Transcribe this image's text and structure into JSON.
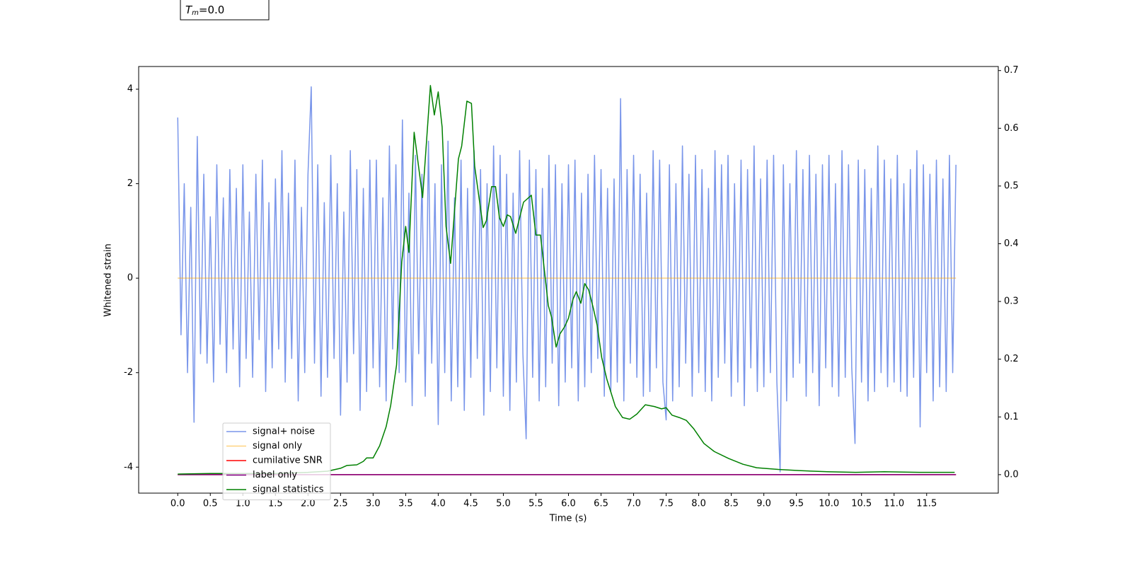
{
  "annotation": {
    "symbol": "T",
    "subscript": "m",
    "text": "=0.0"
  },
  "chart_data": {
    "type": "line",
    "xlabel": "Time (s)",
    "ylabel": "Whitened strain",
    "legend": true,
    "grid": false,
    "xlim": [
      -0.6,
      12.6
    ],
    "ylim": [
      -4.55,
      4.48
    ],
    "y2lim": [
      -0.032,
      0.707
    ],
    "xticks": [
      {
        "value": 0,
        "label": "0.0"
      },
      0.5,
      {
        "value": 1,
        "label": "1.0"
      },
      1.5,
      {
        "value": 2,
        "label": "2.0"
      },
      2.5,
      {
        "value": 3,
        "label": "3.0"
      },
      3.5,
      {
        "value": 4,
        "label": "4.0"
      },
      4.5,
      {
        "value": 5,
        "label": "5.0"
      },
      5.5,
      {
        "value": 6,
        "label": "6.0"
      },
      6.5,
      {
        "value": 7,
        "label": "7.0"
      },
      7.5,
      {
        "value": 8,
        "label": "8.0"
      },
      8.5,
      {
        "value": 9,
        "label": "9.0"
      },
      9.5,
      {
        "value": 10,
        "label": "10.0"
      },
      10.5,
      {
        "value": 11,
        "label": "11.0"
      },
      11.5
    ],
    "yticks": [
      -4,
      -2,
      0,
      2,
      4
    ],
    "y2ticks": [
      {
        "value": 0,
        "label": "0.0"
      },
      0.1,
      0.2,
      0.3,
      0.4,
      0.5,
      0.6,
      0.7
    ],
    "series": [
      {
        "name": "signal+ noise",
        "color": "#4169e1",
        "alpha": 0.7,
        "x": [
          0,
          0.05,
          0.1,
          0.15,
          0.2,
          0.25,
          0.3,
          0.35,
          0.4,
          0.45,
          0.5,
          0.55,
          0.6,
          0.65,
          0.7,
          0.75,
          0.8,
          0.85,
          0.9,
          0.95,
          1,
          1.05,
          1.1,
          1.15,
          1.2,
          1.25,
          1.3,
          1.35,
          1.4,
          1.45,
          1.5,
          1.55,
          1.6,
          1.65,
          1.7,
          1.75,
          1.8,
          1.85,
          1.9,
          1.95,
          2,
          2.05,
          2.1,
          2.15,
          2.2,
          2.25,
          2.3,
          2.35,
          2.4,
          2.45,
          2.5,
          2.55,
          2.6,
          2.65,
          2.7,
          2.75,
          2.8,
          2.85,
          2.9,
          2.95,
          3,
          3.05,
          3.1,
          3.15,
          3.2,
          3.25,
          3.3,
          3.35,
          3.4,
          3.45,
          3.5,
          3.55,
          3.6,
          3.65,
          3.7,
          3.75,
          3.8,
          3.85,
          3.9,
          3.95,
          4,
          4.05,
          4.1,
          4.15,
          4.2,
          4.25,
          4.3,
          4.35,
          4.4,
          4.45,
          4.5,
          4.55,
          4.6,
          4.65,
          4.7,
          4.75,
          4.8,
          4.85,
          4.9,
          4.95,
          5,
          5.05,
          5.1,
          5.15,
          5.2,
          5.25,
          5.3,
          5.35,
          5.4,
          5.45,
          5.5,
          5.55,
          5.6,
          5.65,
          5.7,
          5.75,
          5.8,
          5.85,
          5.9,
          5.95,
          6,
          6.05,
          6.1,
          6.15,
          6.2,
          6.25,
          6.3,
          6.35,
          6.4,
          6.45,
          6.5,
          6.55,
          6.6,
          6.65,
          6.7,
          6.75,
          6.8,
          6.85,
          6.9,
          6.95,
          7,
          7.05,
          7.1,
          7.15,
          7.2,
          7.25,
          7.3,
          7.35,
          7.4,
          7.45,
          7.5,
          7.55,
          7.6,
          7.65,
          7.7,
          7.75,
          7.8,
          7.85,
          7.9,
          7.95,
          8,
          8.05,
          8.1,
          8.15,
          8.2,
          8.25,
          8.3,
          8.35,
          8.4,
          8.45,
          8.5,
          8.55,
          8.6,
          8.65,
          8.7,
          8.75,
          8.8,
          8.85,
          8.9,
          8.95,
          9,
          9.05,
          9.1,
          9.15,
          9.2,
          9.25,
          9.3,
          9.35,
          9.4,
          9.45,
          9.5,
          9.55,
          9.6,
          9.65,
          9.7,
          9.75,
          9.8,
          9.85,
          9.9,
          9.95,
          10,
          10.05,
          10.1,
          10.15,
          10.2,
          10.25,
          10.3,
          10.35,
          10.4,
          10.45,
          10.5,
          10.55,
          10.6,
          10.65,
          10.7,
          10.75,
          10.8,
          10.85,
          10.9,
          10.95,
          11,
          11.05,
          11.1,
          11.15,
          11.2,
          11.25,
          11.3,
          11.35,
          11.4,
          11.45,
          11.5,
          11.55,
          11.6,
          11.65,
          11.7,
          11.75,
          11.8,
          11.85,
          11.9,
          11.95
        ],
        "values": [
          3.4,
          -1.2,
          2.0,
          -2.0,
          1.5,
          -3.05,
          3.0,
          -1.6,
          2.2,
          -1.8,
          1.3,
          -2.2,
          2.4,
          -1.4,
          1.7,
          -2.0,
          2.3,
          -1.5,
          1.9,
          -2.3,
          2.4,
          -1.7,
          1.4,
          -2.1,
          2.2,
          -1.3,
          2.5,
          -2.4,
          1.6,
          -1.9,
          2.1,
          -1.5,
          2.7,
          -2.2,
          1.8,
          -1.7,
          2.5,
          -2.6,
          1.5,
          -2.0,
          2.2,
          4.05,
          -1.8,
          2.4,
          -2.5,
          1.6,
          -2.1,
          2.6,
          -1.7,
          2.0,
          -2.9,
          1.4,
          -2.2,
          2.7,
          -1.6,
          2.3,
          -2.8,
          1.9,
          -2.4,
          2.5,
          -1.9,
          2.5,
          -2.3,
          1.7,
          -2.6,
          2.8,
          -1.5,
          2.4,
          -2.0,
          3.35,
          -2.2,
          1.8,
          -2.7,
          2.6,
          -1.6,
          2.2,
          -2.5,
          2.9,
          -1.8,
          2.0,
          -3.1,
          2.4,
          -2.0,
          2.9,
          -2.6,
          1.7,
          -2.3,
          2.5,
          -2.8,
          1.9,
          -2.1,
          2.7,
          -1.7,
          2.3,
          -2.9,
          2.0,
          -2.4,
          2.8,
          -1.9,
          2.6,
          -2.5,
          2.2,
          -2.8,
          1.8,
          -2.2,
          2.7,
          -1.6,
          -3.4,
          2.5,
          -2.1,
          2.3,
          -2.6,
          1.9,
          -2.3,
          2.6,
          -1.8,
          2.4,
          -2.7,
          2.0,
          -2.2,
          2.4,
          -1.9,
          2.5,
          -2.6,
          1.8,
          -2.3,
          2.2,
          -2.0,
          2.6,
          -1.7,
          2.3,
          -2.5,
          1.9,
          -2.4,
          2.1,
          -2.2,
          3.8,
          -2.6,
          2.3,
          -1.8,
          2.6,
          -2.1,
          2.2,
          -2.5,
          1.8,
          -2.4,
          2.7,
          -1.9,
          2.5,
          -2.2,
          -3.0,
          2.4,
          -2.6,
          2.0,
          -2.3,
          2.8,
          -1.8,
          2.2,
          -2.5,
          2.6,
          -2.0,
          2.3,
          -2.4,
          1.9,
          -2.6,
          2.7,
          -2.1,
          2.4,
          -1.8,
          2.6,
          -2.5,
          2.0,
          -2.2,
          2.5,
          -2.7,
          2.3,
          -1.9,
          2.8,
          -2.4,
          2.1,
          -2.3,
          2.5,
          -2.0,
          2.6,
          -2.2,
          -4.1,
          2.4,
          -2.6,
          2.0,
          -2.1,
          2.7,
          -1.8,
          2.3,
          -2.5,
          2.6,
          -2.0,
          2.2,
          -2.7,
          2.4,
          -1.9,
          2.6,
          -2.3,
          2.0,
          -2.5,
          2.7,
          -2.1,
          2.4,
          -1.9,
          -3.5,
          2.5,
          -2.2,
          2.3,
          -2.6,
          1.9,
          -2.4,
          2.8,
          -2.0,
          2.5,
          -2.3,
          2.1,
          -2.2,
          2.6,
          -2.4,
          2.0,
          -2.5,
          2.3,
          -2.1,
          2.7,
          -3.15,
          2.4,
          -2.0,
          2.2,
          -2.6,
          2.5,
          -2.3,
          2.1,
          -2.4,
          2.6,
          -2.0,
          2.4
        ]
      },
      {
        "name": "signal only",
        "color": "orange",
        "alpha": 0.5,
        "x": [
          0,
          11.95
        ],
        "values": [
          0,
          0
        ]
      },
      {
        "name": "cumilative SNR",
        "color": "red",
        "alpha": 1,
        "axis": "y2",
        "x": [
          0,
          11.95
        ],
        "values": [
          0,
          0
        ]
      },
      {
        "name": "label only",
        "color": "purple",
        "alpha": 1,
        "axis": "y2",
        "x": [
          0,
          11.95
        ],
        "values": [
          0,
          0
        ]
      },
      {
        "name": "signal statistics",
        "color": "green",
        "alpha": 1,
        "axis": "y2",
        "x": [
          0,
          0.5,
          1.0,
          1.5,
          2.0,
          2.3,
          2.5,
          2.6,
          2.75,
          2.85,
          2.9,
          3.0,
          3.1,
          3.2,
          3.27,
          3.36,
          3.44,
          3.5,
          3.55,
          3.63,
          3.76,
          3.88,
          3.94,
          4.0,
          4.06,
          4.12,
          4.19,
          4.31,
          4.36,
          4.44,
          4.51,
          4.56,
          4.69,
          4.74,
          4.82,
          4.88,
          4.94,
          5.0,
          5.06,
          5.11,
          5.19,
          5.31,
          5.43,
          5.5,
          5.57,
          5.69,
          5.74,
          5.81,
          5.87,
          5.94,
          6.0,
          6.07,
          6.12,
          6.19,
          6.25,
          6.31,
          6.38,
          6.44,
          6.51,
          6.59,
          6.72,
          6.83,
          6.94,
          7.05,
          7.18,
          7.32,
          7.43,
          7.5,
          7.59,
          7.7,
          7.81,
          7.92,
          8.08,
          8.24,
          8.46,
          8.68,
          8.89,
          9.22,
          9.54,
          9.98,
          10.41,
          10.85,
          11.39,
          11.93
        ],
        "values": [
          0.001,
          0.002,
          0.002,
          0.002,
          0.004,
          0.006,
          0.011,
          0.016,
          0.017,
          0.023,
          0.029,
          0.029,
          0.05,
          0.083,
          0.12,
          0.19,
          0.369,
          0.43,
          0.385,
          0.593,
          0.48,
          0.674,
          0.623,
          0.663,
          0.602,
          0.43,
          0.366,
          0.547,
          0.569,
          0.647,
          0.643,
          0.534,
          0.428,
          0.44,
          0.499,
          0.499,
          0.445,
          0.43,
          0.45,
          0.447,
          0.418,
          0.472,
          0.484,
          0.415,
          0.415,
          0.293,
          0.273,
          0.221,
          0.244,
          0.256,
          0.271,
          0.304,
          0.317,
          0.297,
          0.331,
          0.32,
          0.289,
          0.259,
          0.203,
          0.165,
          0.118,
          0.099,
          0.096,
          0.105,
          0.121,
          0.118,
          0.114,
          0.116,
          0.103,
          0.099,
          0.094,
          0.08,
          0.054,
          0.04,
          0.028,
          0.018,
          0.012,
          0.009,
          0.007,
          0.005,
          0.004,
          0.005,
          0.004,
          0.004
        ]
      }
    ]
  }
}
